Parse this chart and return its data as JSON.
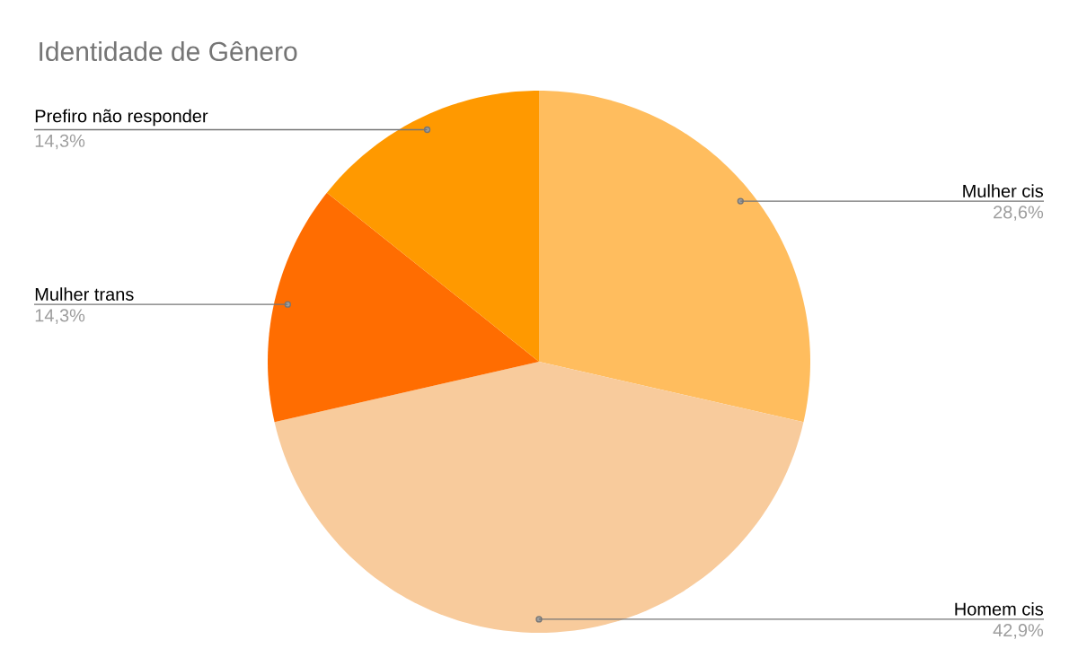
{
  "chart_data": {
    "type": "pie",
    "title": "Identidade de Gênero",
    "categories": [
      "Mulher cis",
      "Homem cis",
      "Mulher trans",
      "Prefiro não responder"
    ],
    "values": [
      28.6,
      42.9,
      14.3,
      14.3
    ],
    "value_labels": [
      "28,6%",
      "42,9%",
      "14,3%",
      "14,3%"
    ],
    "colors": [
      "#ffbd5e",
      "#f8cb9c",
      "#ff6d01",
      "#ff9900"
    ]
  }
}
